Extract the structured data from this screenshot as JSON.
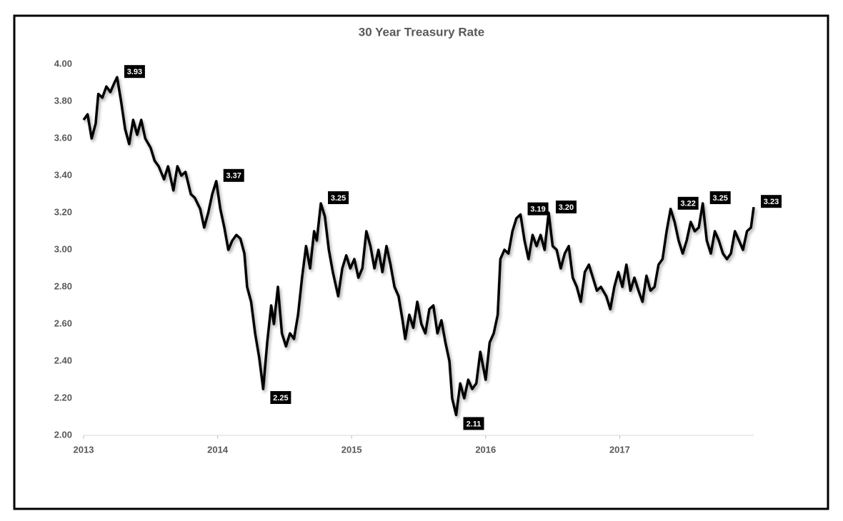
{
  "chart_data": {
    "type": "line",
    "title": "30 Year Treasury Rate",
    "xlim": [
      2013,
      2018
    ],
    "xticks": [
      2013,
      2014,
      2015,
      2016,
      2017
    ],
    "ylim": [
      2,
      4
    ],
    "yticks": [
      {
        "value": 2,
        "label": "2.00"
      },
      {
        "value": 2.2,
        "label": "2.20"
      },
      {
        "value": 2.4,
        "label": "2.40"
      },
      {
        "value": 2.6,
        "label": "2.60"
      },
      {
        "value": 2.8,
        "label": "2.80"
      },
      {
        "value": 3,
        "label": "3.00"
      },
      {
        "value": 3.2,
        "label": "3.20"
      },
      {
        "value": 3.4,
        "label": "3.40"
      },
      {
        "value": 3.6,
        "label": "3.60"
      },
      {
        "value": 3.8,
        "label": "3.80"
      },
      {
        "value": 4,
        "label": "4.00"
      }
    ],
    "grid": false,
    "color": "#000000",
    "x": [
      2013.0,
      2013.03,
      2013.06,
      2013.09,
      2013.11,
      2013.14,
      2013.17,
      2013.2,
      2013.23,
      2013.25,
      2013.28,
      2013.31,
      2013.34,
      2013.37,
      2013.4,
      2013.43,
      2013.46,
      2013.5,
      2013.53,
      2013.56,
      2013.6,
      2013.63,
      2013.67,
      2013.7,
      2013.73,
      2013.76,
      2013.8,
      2013.83,
      2013.87,
      2013.9,
      2013.93,
      2013.96,
      2013.99,
      2014.02,
      2014.05,
      2014.08,
      2014.11,
      2014.14,
      2014.17,
      2014.2,
      2014.22,
      2014.25,
      2014.28,
      2014.31,
      2014.34,
      2014.37,
      2014.4,
      2014.42,
      2014.45,
      2014.48,
      2014.51,
      2014.54,
      2014.57,
      2014.6,
      2014.63,
      2014.66,
      2014.69,
      2014.72,
      2014.74,
      2014.77,
      2014.8,
      2014.83,
      2014.86,
      2014.9,
      2014.93,
      2014.96,
      2014.99,
      2015.02,
      2015.05,
      2015.08,
      2015.11,
      2015.14,
      2015.17,
      2015.2,
      2015.23,
      2015.26,
      2015.29,
      2015.32,
      2015.35,
      2015.38,
      2015.4,
      2015.43,
      2015.46,
      2015.49,
      2015.52,
      2015.55,
      2015.58,
      2015.61,
      2015.64,
      2015.67,
      2015.7,
      2015.73,
      2015.75,
      2015.78,
      2015.81,
      2015.84,
      2015.87,
      2015.9,
      2015.93,
      2015.96,
      2016.0,
      2016.03,
      2016.06,
      2016.09,
      2016.11,
      2016.14,
      2016.17,
      2016.2,
      2016.23,
      2016.26,
      2016.29,
      2016.32,
      2016.35,
      2016.38,
      2016.41,
      2016.44,
      2016.47,
      2016.5,
      2016.53,
      2016.56,
      2016.59,
      2016.62,
      2016.65,
      2016.68,
      2016.71,
      2016.74,
      2016.77,
      2016.8,
      2016.83,
      2016.86,
      2016.9,
      2016.93,
      2016.96,
      2016.99,
      2017.02,
      2017.05,
      2017.08,
      2017.11,
      2017.14,
      2017.17,
      2017.2,
      2017.23,
      2017.26,
      2017.29,
      2017.32,
      2017.35,
      2017.38,
      2017.41,
      2017.44,
      2017.47,
      2017.5,
      2017.53,
      2017.56,
      2017.59,
      2017.62,
      2017.65,
      2017.68,
      2017.71,
      2017.74,
      2017.77,
      2017.8,
      2017.83,
      2017.86,
      2017.89,
      2017.92,
      2017.95,
      2017.98,
      2018.0
    ],
    "values": [
      3.7,
      3.73,
      3.6,
      3.68,
      3.84,
      3.82,
      3.88,
      3.85,
      3.9,
      3.93,
      3.8,
      3.65,
      3.57,
      3.7,
      3.62,
      3.7,
      3.6,
      3.55,
      3.48,
      3.45,
      3.38,
      3.45,
      3.32,
      3.45,
      3.4,
      3.42,
      3.3,
      3.28,
      3.22,
      3.12,
      3.2,
      3.3,
      3.37,
      3.22,
      3.12,
      3.0,
      3.05,
      3.08,
      3.06,
      2.98,
      2.8,
      2.72,
      2.55,
      2.42,
      2.25,
      2.5,
      2.7,
      2.6,
      2.8,
      2.55,
      2.48,
      2.55,
      2.52,
      2.65,
      2.85,
      3.02,
      2.9,
      3.1,
      3.05,
      3.25,
      3.18,
      3.0,
      2.88,
      2.75,
      2.9,
      2.97,
      2.9,
      2.95,
      2.85,
      2.9,
      3.1,
      3.02,
      2.9,
      3.0,
      2.88,
      3.02,
      2.92,
      2.8,
      2.75,
      2.62,
      2.52,
      2.65,
      2.58,
      2.72,
      2.6,
      2.55,
      2.68,
      2.7,
      2.55,
      2.62,
      2.5,
      2.4,
      2.2,
      2.11,
      2.28,
      2.2,
      2.3,
      2.25,
      2.28,
      2.45,
      2.3,
      2.5,
      2.55,
      2.65,
      2.95,
      3.0,
      2.98,
      3.1,
      3.17,
      3.19,
      3.05,
      2.95,
      3.08,
      3.02,
      3.08,
      3.0,
      3.2,
      3.02,
      3.0,
      2.9,
      2.98,
      3.02,
      2.85,
      2.8,
      2.72,
      2.88,
      2.92,
      2.85,
      2.78,
      2.8,
      2.75,
      2.68,
      2.8,
      2.88,
      2.8,
      2.92,
      2.78,
      2.85,
      2.78,
      2.72,
      2.86,
      2.78,
      2.8,
      2.92,
      2.95,
      3.1,
      3.22,
      3.15,
      3.05,
      2.98,
      3.05,
      3.15,
      3.1,
      3.12,
      3.25,
      3.05,
      2.98,
      3.1,
      3.05,
      2.98,
      2.95,
      2.98,
      3.1,
      3.05,
      3.0,
      3.1,
      3.12,
      3.23
    ],
    "annotations": [
      {
        "x": 2013.25,
        "value": 3.93,
        "label": "3.93"
      },
      {
        "x": 2013.99,
        "value": 3.37,
        "label": "3.37"
      },
      {
        "x": 2014.34,
        "value": 2.25,
        "label": "2.25"
      },
      {
        "x": 2014.77,
        "value": 3.25,
        "label": "3.25"
      },
      {
        "x": 2015.78,
        "value": 2.11,
        "label": "2.11"
      },
      {
        "x": 2016.26,
        "value": 3.19,
        "label": "3.19"
      },
      {
        "x": 2016.47,
        "value": 3.2,
        "label": "3.20"
      },
      {
        "x": 2017.38,
        "value": 3.22,
        "label": "3.22"
      },
      {
        "x": 2017.62,
        "value": 3.25,
        "label": "3.25"
      },
      {
        "x": 2018.0,
        "value": 3.23,
        "label": "3.23"
      }
    ]
  }
}
